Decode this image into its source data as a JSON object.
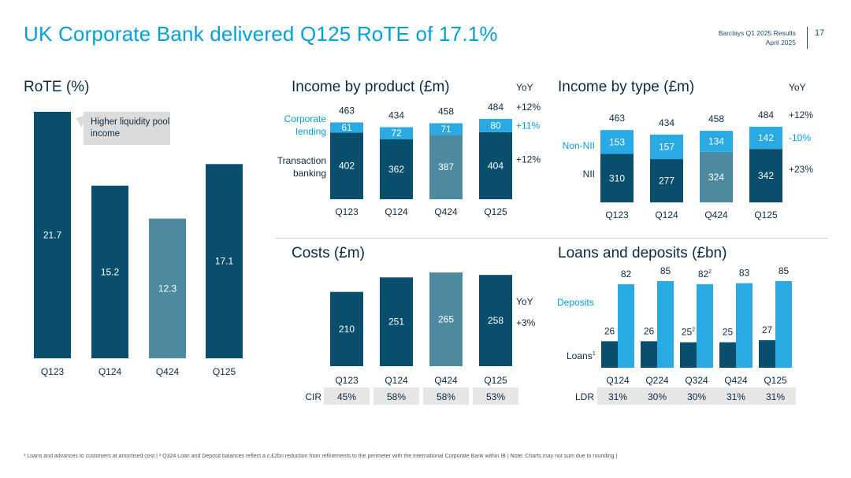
{
  "header": {
    "title": "UK Corporate Bank delivered Q125 RoTE of 17.1%",
    "report": "Barclays Q1 2025 Results",
    "date": "April 2025",
    "page": "17"
  },
  "colors": {
    "dark": "#0a4e6e",
    "mid": "#4d8aa0",
    "light": "#29aae3",
    "text": "#0d2a45",
    "accent": "#00a0dc",
    "grey": "#e6e6e6"
  },
  "chart_data": [
    {
      "id": "rote",
      "type": "bar",
      "title": "RoTE (%)",
      "categories": [
        "Q123",
        "Q124",
        "Q424",
        "Q125"
      ],
      "values": [
        21.7,
        15.2,
        12.3,
        17.1
      ],
      "labels": [
        "21.7",
        "15.2",
        "12.3",
        "17.1"
      ],
      "annotation": "Higher liquidity pool income"
    },
    {
      "id": "income_product",
      "type": "bar",
      "stacked": true,
      "title": "Income by product (£m)",
      "categories": [
        "Q123",
        "Q124",
        "Q424",
        "Q125"
      ],
      "series": [
        {
          "name": "Transaction banking",
          "values": [
            402,
            362,
            387,
            404
          ],
          "labels": [
            "402",
            "362",
            "387",
            "404"
          ],
          "yoy": "+12%"
        },
        {
          "name": "Corporate lending",
          "values": [
            61,
            72,
            71,
            80
          ],
          "labels": [
            "61",
            "72",
            "71",
            "80"
          ],
          "yoy": "+11%"
        }
      ],
      "totals": [
        "463",
        "434",
        "458",
        "484"
      ],
      "total_yoy": "+12%",
      "yoy_label": "YoY"
    },
    {
      "id": "income_type",
      "type": "bar",
      "stacked": true,
      "title": "Income by type (£m)",
      "categories": [
        "Q123",
        "Q124",
        "Q424",
        "Q125"
      ],
      "series": [
        {
          "name": "NII",
          "values": [
            310,
            277,
            324,
            342
          ],
          "labels": [
            "310",
            "277",
            "324",
            "342"
          ],
          "yoy": "+23%"
        },
        {
          "name": "Non-NII",
          "values": [
            153,
            157,
            134,
            142
          ],
          "labels": [
            "153",
            "157",
            "134",
            "142"
          ],
          "yoy": "-10%"
        }
      ],
      "totals": [
        "463",
        "434",
        "458",
        "484"
      ],
      "total_yoy": "+12%",
      "yoy_label": "YoY"
    },
    {
      "id": "costs",
      "type": "bar",
      "title": "Costs (£m)",
      "categories": [
        "Q123",
        "Q124",
        "Q424",
        "Q125"
      ],
      "values": [
        210,
        251,
        265,
        258
      ],
      "labels": [
        "210",
        "251",
        "265",
        "258"
      ],
      "yoy_label": "YoY",
      "yoy": "+3%",
      "ratio_label": "CIR",
      "ratios": [
        "45%",
        "58%",
        "58%",
        "53%"
      ]
    },
    {
      "id": "loans_deposits",
      "type": "bar",
      "grouped": true,
      "title": "Loans and deposits (£bn)",
      "categories": [
        "Q124",
        "Q224",
        "Q324",
        "Q424",
        "Q125"
      ],
      "series": [
        {
          "name": "Loans",
          "sup": "1",
          "values": [
            26,
            26,
            25,
            25,
            27
          ],
          "labels": [
            "26",
            "26",
            "25",
            "25",
            "27"
          ],
          "sups": [
            "",
            "",
            "2",
            "",
            ""
          ]
        },
        {
          "name": "Deposits",
          "sup": "",
          "values": [
            82,
            85,
            82,
            83,
            85
          ],
          "labels": [
            "82",
            "85",
            "82",
            "83",
            "85"
          ],
          "sups": [
            "",
            "",
            "2",
            "",
            ""
          ]
        }
      ],
      "ratio_label": "LDR",
      "ratios": [
        "31%",
        "30%",
        "30%",
        "31%",
        "31%"
      ]
    }
  ],
  "footnote": "¹ Loans and advances to customers at amortised cost | ² Q324 Loan and Deposit balances reflect a c.£2bn reduction from refinements to the perimeter with the International Corporate Bank within IB | Note: Charts may not sum due to rounding |"
}
